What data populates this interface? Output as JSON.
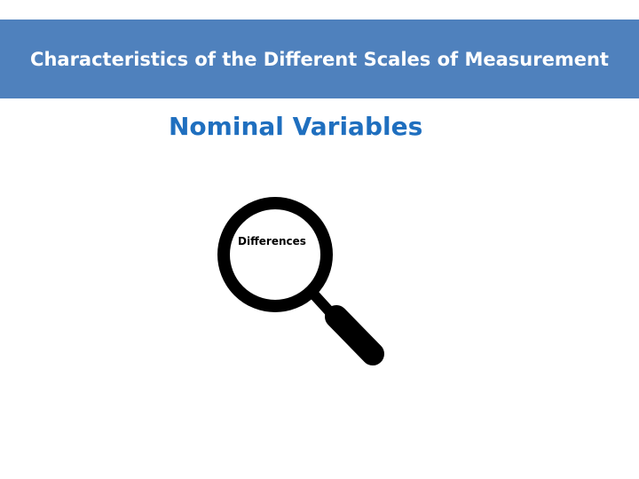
{
  "slide": {
    "title": "Characteristics of the Different Scales of Measurement",
    "subtitle": "Nominal Variables",
    "magnifier_label": "Differences",
    "icon": "magnifying-glass-icon"
  },
  "colors": {
    "title_bar": "#4f81bd",
    "title_text": "#ffffff",
    "subtitle_text": "#1f6fbf",
    "icon": "#000000"
  }
}
